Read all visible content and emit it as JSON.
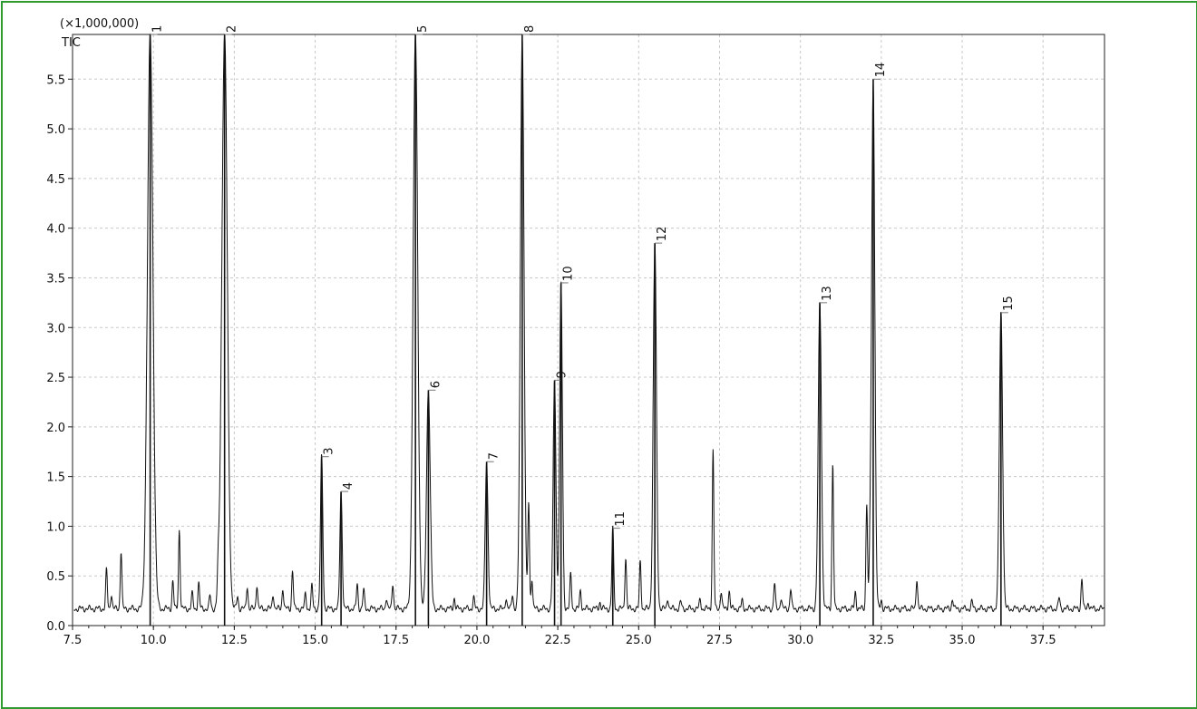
{
  "chart_data": {
    "type": "line",
    "title": "",
    "xlabel": "",
    "ylabel": "",
    "y_multiplier_label": "(×1,000,000)",
    "trace_label": "TIC",
    "xlim": [
      7.5,
      39.4
    ],
    "ylim": [
      0.0,
      5.95
    ],
    "x_ticks": [
      "7.5",
      "10.0",
      "12.5",
      "15.0",
      "17.5",
      "20.0",
      "22.5",
      "25.0",
      "27.5",
      "30.0",
      "32.5",
      "35.0",
      "37.5"
    ],
    "y_ticks": [
      "0.0",
      "0.5",
      "1.0",
      "1.5",
      "2.0",
      "2.5",
      "3.0",
      "3.5",
      "4.0",
      "4.5",
      "5.0",
      "5.5"
    ],
    "grid": true,
    "colors": {
      "trace": "#111111",
      "grid": "#c8c8c8",
      "frame": "#2f9a2f"
    },
    "baseline": 0.17,
    "labeled_peaks": [
      {
        "label": "1",
        "x": 9.9,
        "y": 5.95,
        "width": 0.12
      },
      {
        "label": "2",
        "x": 12.2,
        "y": 5.95,
        "width": 0.12
      },
      {
        "label": "3",
        "x": 15.2,
        "y": 1.7,
        "width": 0.05
      },
      {
        "label": "4",
        "x": 15.8,
        "y": 1.35,
        "width": 0.05
      },
      {
        "label": "5",
        "x": 18.1,
        "y": 5.95,
        "width": 0.1
      },
      {
        "label": "6",
        "x": 18.5,
        "y": 2.37,
        "width": 0.08
      },
      {
        "label": "7",
        "x": 20.3,
        "y": 1.65,
        "width": 0.06
      },
      {
        "label": "8",
        "x": 21.4,
        "y": 5.95,
        "width": 0.08
      },
      {
        "label": "9",
        "x": 22.4,
        "y": 2.47,
        "width": 0.06
      },
      {
        "label": "10",
        "x": 22.6,
        "y": 3.45,
        "width": 0.06
      },
      {
        "label": "11",
        "x": 24.2,
        "y": 0.98,
        "width": 0.04
      },
      {
        "label": "12",
        "x": 25.5,
        "y": 3.85,
        "width": 0.07
      },
      {
        "label": "13",
        "x": 30.6,
        "y": 3.25,
        "width": 0.07
      },
      {
        "label": "14",
        "x": 32.25,
        "y": 5.5,
        "width": 0.07
      },
      {
        "label": "15",
        "x": 36.2,
        "y": 3.15,
        "width": 0.07
      }
    ],
    "minor_peaks": [
      {
        "x": 8.55,
        "y": 0.56
      },
      {
        "x": 8.7,
        "y": 0.32
      },
      {
        "x": 9.0,
        "y": 0.75
      },
      {
        "x": 10.6,
        "y": 0.45
      },
      {
        "x": 10.8,
        "y": 0.97
      },
      {
        "x": 11.2,
        "y": 0.32
      },
      {
        "x": 11.4,
        "y": 0.43
      },
      {
        "x": 11.75,
        "y": 0.3
      },
      {
        "x": 12.0,
        "y": 0.42
      },
      {
        "x": 12.6,
        "y": 0.3
      },
      {
        "x": 12.9,
        "y": 0.4
      },
      {
        "x": 13.2,
        "y": 0.42
      },
      {
        "x": 13.7,
        "y": 0.32
      },
      {
        "x": 14.0,
        "y": 0.38
      },
      {
        "x": 14.3,
        "y": 0.56
      },
      {
        "x": 14.7,
        "y": 0.32
      },
      {
        "x": 14.9,
        "y": 0.4
      },
      {
        "x": 16.3,
        "y": 0.42
      },
      {
        "x": 16.5,
        "y": 0.36
      },
      {
        "x": 17.2,
        "y": 0.28
      },
      {
        "x": 17.4,
        "y": 0.43
      },
      {
        "x": 19.3,
        "y": 0.28
      },
      {
        "x": 19.9,
        "y": 0.28
      },
      {
        "x": 20.9,
        "y": 0.28
      },
      {
        "x": 21.1,
        "y": 0.32
      },
      {
        "x": 21.6,
        "y": 1.25
      },
      {
        "x": 21.7,
        "y": 0.48
      },
      {
        "x": 22.9,
        "y": 0.52
      },
      {
        "x": 23.2,
        "y": 0.35
      },
      {
        "x": 23.8,
        "y": 0.24
      },
      {
        "x": 24.6,
        "y": 0.69
      },
      {
        "x": 25.05,
        "y": 0.65
      },
      {
        "x": 25.9,
        "y": 0.28
      },
      {
        "x": 26.3,
        "y": 0.24
      },
      {
        "x": 26.9,
        "y": 0.26
      },
      {
        "x": 27.3,
        "y": 1.77
      },
      {
        "x": 27.55,
        "y": 0.35
      },
      {
        "x": 27.8,
        "y": 0.35
      },
      {
        "x": 28.2,
        "y": 0.25
      },
      {
        "x": 29.2,
        "y": 0.42
      },
      {
        "x": 29.4,
        "y": 0.28
      },
      {
        "x": 29.7,
        "y": 0.37
      },
      {
        "x": 31.0,
        "y": 1.63
      },
      {
        "x": 31.7,
        "y": 0.34
      },
      {
        "x": 32.05,
        "y": 1.25
      },
      {
        "x": 32.15,
        "y": 0.54
      },
      {
        "x": 32.5,
        "y": 0.26
      },
      {
        "x": 33.6,
        "y": 0.48
      },
      {
        "x": 34.7,
        "y": 0.27
      },
      {
        "x": 35.3,
        "y": 0.24
      },
      {
        "x": 38.0,
        "y": 0.28
      },
      {
        "x": 38.7,
        "y": 0.48
      },
      {
        "x": 38.9,
        "y": 0.24
      }
    ]
  }
}
